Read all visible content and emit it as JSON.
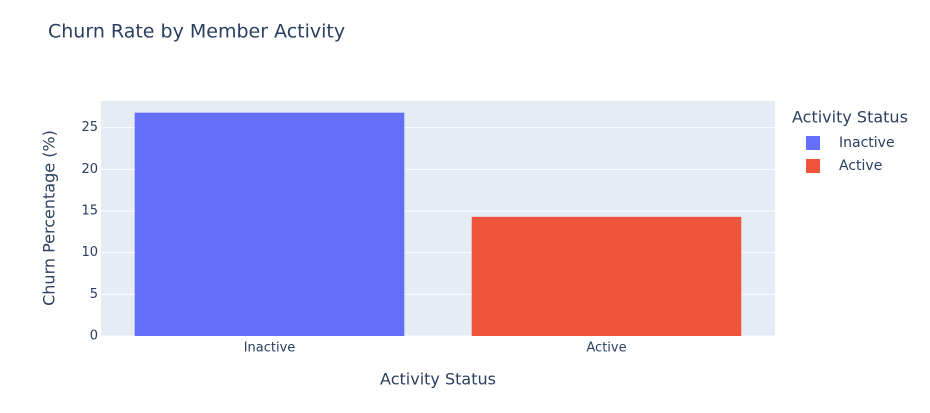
{
  "chart_data": {
    "type": "bar",
    "title": "Churn Rate by Member Activity",
    "x_label": "Activity Status",
    "y_label": "Churn Percentage (%)",
    "legend_title": "Activity Status",
    "categories": [
      "Inactive",
      "Active"
    ],
    "series": [
      {
        "name": "Inactive",
        "color": "#636efa",
        "values": [
          26.8,
          null
        ]
      },
      {
        "name": "Active",
        "color": "#ef553b",
        "values": [
          null,
          14.3
        ]
      }
    ],
    "ylim": [
      0,
      28.2
    ],
    "yticks": [
      0,
      5,
      10,
      15,
      20,
      25
    ],
    "grid": true,
    "legend": "right"
  }
}
